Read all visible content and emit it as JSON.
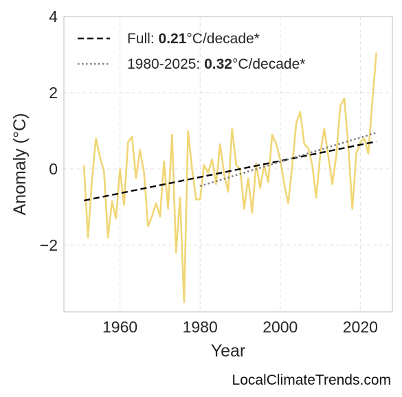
{
  "chart_data": {
    "type": "line",
    "xlabel": "Year",
    "ylabel": "Anomaly (°C)",
    "xlim": [
      1946,
      2028
    ],
    "ylim": [
      -3.75,
      4.0
    ],
    "x_ticks": [
      1960,
      1980,
      2000,
      2020
    ],
    "y_ticks": [
      4,
      2,
      0,
      -2
    ],
    "y_tick_labels": [
      "4",
      "2",
      "0",
      "−2"
    ],
    "grid": true,
    "legend_position": "top-left",
    "series": [
      {
        "color": "#f0d675",
        "style": "solid",
        "x": [
          1951,
          1952,
          1953,
          1954,
          1955,
          1956,
          1957,
          1958,
          1959,
          1960,
          1961,
          1962,
          1963,
          1964,
          1965,
          1966,
          1967,
          1968,
          1969,
          1970,
          1971,
          1972,
          1973,
          1974,
          1975,
          1976,
          1977,
          1978,
          1979,
          1980,
          1981,
          1982,
          1983,
          1984,
          1985,
          1986,
          1987,
          1988,
          1989,
          1990,
          1991,
          1992,
          1993,
          1994,
          1995,
          1996,
          1997,
          1998,
          1999,
          2000,
          2001,
          2002,
          2003,
          2004,
          2005,
          2006,
          2007,
          2008,
          2009,
          2010,
          2011,
          2012,
          2013,
          2014,
          2015,
          2016,
          2017,
          2018,
          2019,
          2020,
          2021,
          2022,
          2023,
          2024
        ],
        "values": [
          0.1,
          -1.8,
          -0.3,
          0.8,
          0.3,
          -0.05,
          -1.8,
          -0.85,
          -1.3,
          0.0,
          -0.95,
          0.7,
          0.85,
          -0.25,
          0.5,
          -0.1,
          -1.5,
          -1.25,
          -0.9,
          -1.25,
          0.2,
          -1.05,
          0.9,
          -2.2,
          -0.75,
          -3.5,
          1.0,
          0.0,
          -0.8,
          -0.8,
          0.1,
          -0.1,
          0.25,
          -0.4,
          0.65,
          -0.15,
          -0.6,
          1.05,
          0.1,
          0.0,
          -1.05,
          -0.25,
          -1.15,
          0.15,
          -0.5,
          0.1,
          -0.35,
          0.9,
          0.65,
          0.25,
          -0.4,
          -0.9,
          0.1,
          1.2,
          1.5,
          0.65,
          0.55,
          0.1,
          -0.75,
          0.4,
          1.05,
          0.35,
          -0.4,
          0.35,
          1.65,
          1.85,
          0.6,
          -1.05,
          0.4,
          0.7,
          0.8,
          0.4,
          1.8,
          3.05
        ]
      },
      {
        "name": "Full: 0.21°C/decade*",
        "color": "#000000",
        "style": "dashed",
        "x": [
          1951,
          2024
        ],
        "values": [
          -0.83,
          0.72
        ]
      },
      {
        "name": "1980-2025: 0.32°C/decade*",
        "color": "#7f7f7f",
        "style": "dotted",
        "x": [
          1980,
          2024
        ],
        "values": [
          -0.45,
          0.95
        ]
      }
    ],
    "legend": [
      {
        "prefix": "Full: ",
        "bold": "0.21",
        "suffix": "°C/decade*"
      },
      {
        "prefix": "1980-2025: ",
        "bold": "0.32",
        "suffix": "°C/decade*"
      }
    ]
  },
  "footer": {
    "watermark": "LocalClimateTrends.com"
  }
}
